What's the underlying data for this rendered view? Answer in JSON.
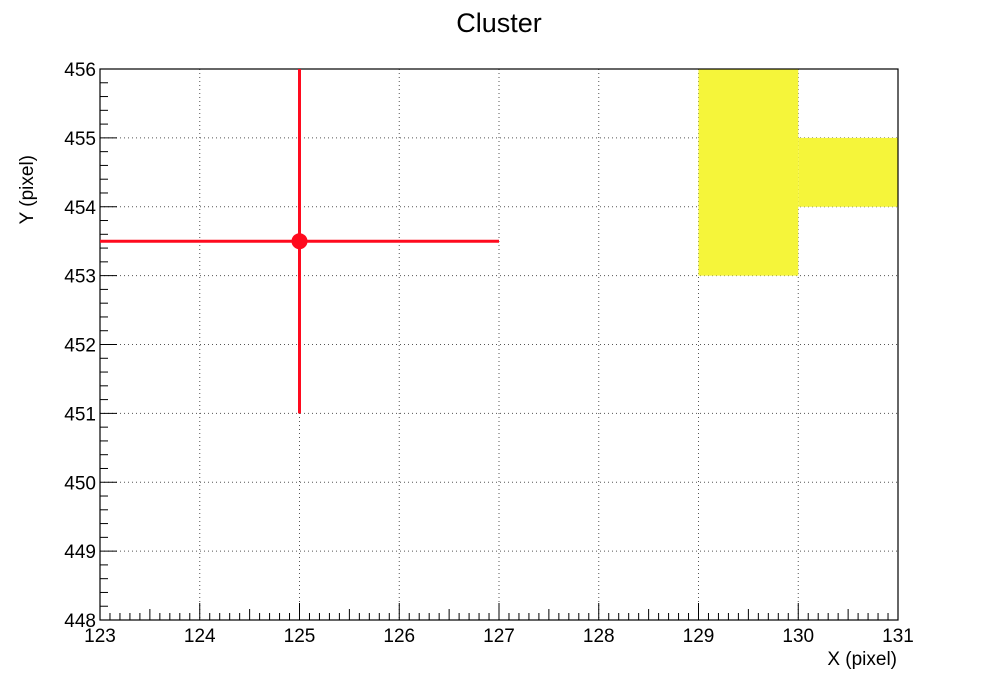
{
  "chart_data": {
    "type": "scatter",
    "title": "Cluster",
    "xlabel": "X (pixel)",
    "ylabel": "Y (pixel)",
    "xlim": [
      123,
      131
    ],
    "ylim": [
      448,
      456
    ],
    "x_ticks": [
      123,
      124,
      125,
      126,
      127,
      128,
      129,
      130,
      131
    ],
    "y_ticks": [
      448,
      449,
      450,
      451,
      452,
      453,
      454,
      455,
      456
    ],
    "grid": true,
    "grid_style": "dotted",
    "cells": [
      {
        "x0": 129,
        "x1": 130,
        "y0": 453,
        "y1": 456
      },
      {
        "x0": 130,
        "x1": 131,
        "y0": 454,
        "y1": 455
      }
    ],
    "cell_color": "#f5f53a",
    "point": {
      "x": 125,
      "y": 453.5,
      "x_err_low": 2,
      "x_err_high": 2,
      "y_err_low": 2.5,
      "y_err_high": 2.5
    },
    "point_color": "#ff0a1e"
  }
}
